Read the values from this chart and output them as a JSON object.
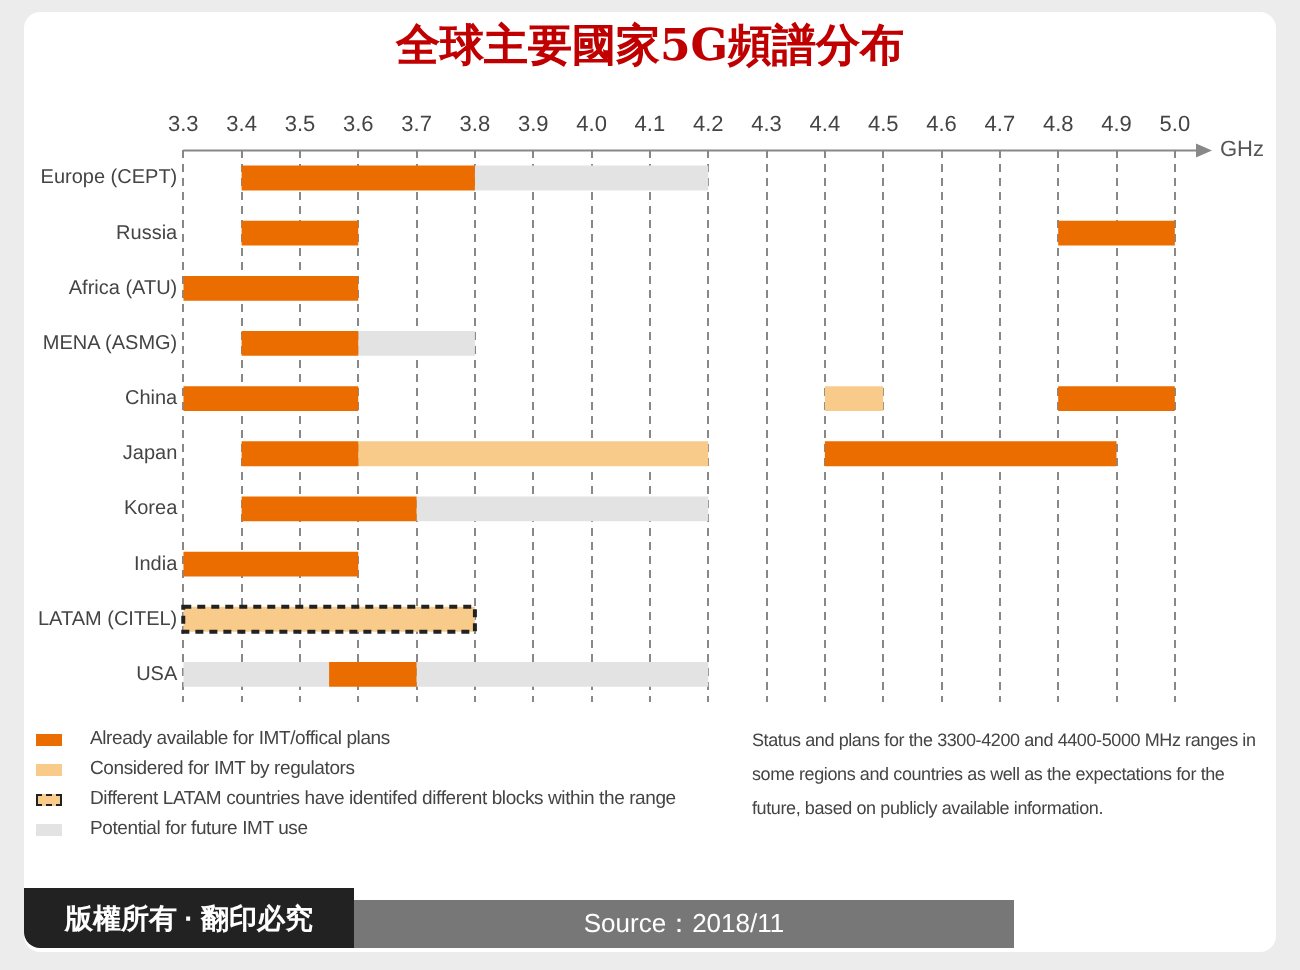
{
  "chart_data": {
    "type": "bar",
    "orientation": "horizontal",
    "title": "全球主要國家5G頻譜分布",
    "xlabel": "GHz",
    "categories": [
      "Europe (CEPT)",
      "Russia",
      "Africa (ATU)",
      "MENA (ASMG)",
      "China",
      "Japan",
      "Korea",
      "India",
      "LATAM (CITEL)",
      "USA"
    ],
    "series": [
      {
        "name": "Already available for IMT/offical plans",
        "color": "#eb6d00",
        "base": [
          3.4,
          3.4,
          3.3,
          3.4,
          3.3,
          3.4,
          3.4,
          3.3,
          null,
          3.55
        ],
        "values": [
          0.4,
          0.2,
          0.3,
          0.2,
          0.3,
          0.2,
          0.3,
          0.3,
          null,
          0.15
        ]
      },
      {
        "name": "Considered for IMT by regulators",
        "color": "#f9cb8a",
        "base": [
          null,
          null,
          null,
          null,
          4.4,
          3.6,
          null,
          null,
          null,
          null
        ],
        "values": [
          null,
          null,
          null,
          null,
          0.1,
          0.6,
          null,
          null,
          null,
          null
        ]
      },
      {
        "name": "Different LATAM countries have identifed different blocks within the range",
        "color": "#f9cb8a",
        "line_style": "dashed",
        "base": [
          null,
          null,
          null,
          null,
          null,
          null,
          null,
          null,
          3.3,
          null
        ],
        "values": [
          null,
          null,
          null,
          null,
          null,
          null,
          null,
          null,
          0.5,
          null
        ]
      },
      {
        "name": "Potential for future IMT use",
        "color": "#e3e3e3",
        "base": [
          3.8,
          null,
          null,
          3.6,
          null,
          null,
          3.7,
          null,
          null,
          3.3
        ],
        "values": [
          0.4,
          null,
          null,
          0.2,
          null,
          null,
          0.5,
          null,
          null,
          0.25
        ]
      },
      {
        "color": "#eb6d00",
        "base": [
          null,
          4.8,
          null,
          null,
          4.8,
          4.4,
          null,
          null,
          null,
          null
        ],
        "values": [
          null,
          0.2,
          null,
          null,
          0.2,
          0.5,
          null,
          null,
          null,
          null
        ]
      },
      {
        "color": "#e3e3e3",
        "base": [
          null,
          null,
          null,
          null,
          null,
          null,
          null,
          null,
          null,
          3.7
        ],
        "values": [
          null,
          null,
          null,
          null,
          null,
          null,
          null,
          null,
          null,
          0.5
        ]
      }
    ],
    "xlim": [
      3.3,
      5.05
    ],
    "xticks": [
      3.3,
      3.4,
      3.5,
      3.6,
      3.7,
      3.8,
      3.9,
      {
        "value": 4,
        "label": "4.0"
      },
      4.1,
      4.2,
      4.3,
      4.4,
      4.5,
      4.6,
      4.7,
      4.8,
      4.9,
      {
        "value": 5,
        "label": "5.0"
      }
    ],
    "grid": "x",
    "legend": "bottom left",
    "annotations": [
      "Status and plans for the 3300-4200 and 4400-5000 MHz ranges in some regions and countries as well as the expectations for the future, based on publicly available information.",
      "版權所有 · 翻印必究",
      "Source：2018/11"
    ]
  }
}
